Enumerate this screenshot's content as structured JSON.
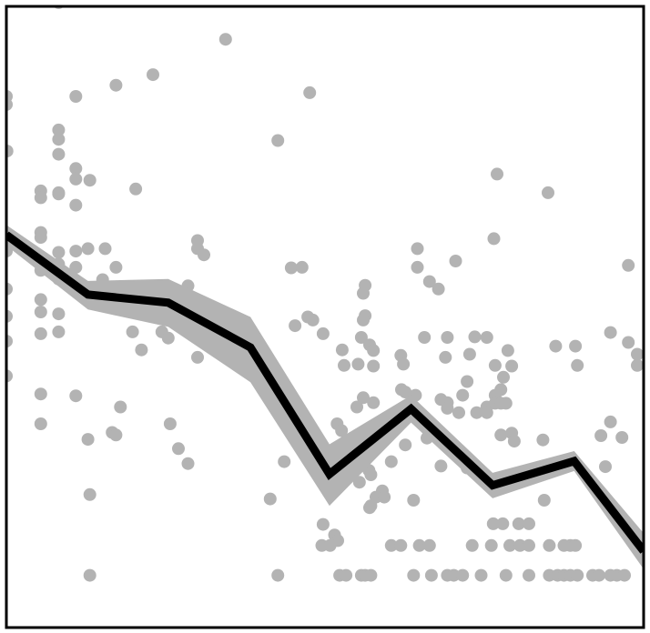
{
  "chart_data": {
    "type": "scatter",
    "title": "",
    "xlabel": "",
    "ylabel": "",
    "xlim": [
      0,
      100
    ],
    "ylim": [
      0,
      100
    ],
    "grid": false,
    "legend": "none",
    "colors": {
      "points": "#b3b3b3",
      "band": "#b3b3b3",
      "line": "#000000",
      "frame": "#000000",
      "background": "#ffffff"
    },
    "points": [
      [
        8.2,
        100.6
      ],
      [
        34.4,
        94.7
      ],
      [
        0.0,
        85.5
      ],
      [
        0.0,
        84.2
      ],
      [
        23.0,
        89.0
      ],
      [
        17.2,
        87.3
      ],
      [
        10.9,
        85.5
      ],
      [
        47.6,
        86.1
      ],
      [
        8.2,
        80.1
      ],
      [
        8.2,
        78.6
      ],
      [
        8.2,
        76.2
      ],
      [
        0.1,
        76.7
      ],
      [
        10.9,
        73.9
      ],
      [
        10.9,
        72.2
      ],
      [
        13.1,
        72.0
      ],
      [
        20.3,
        70.6
      ],
      [
        5.4,
        70.3
      ],
      [
        8.2,
        70.0
      ],
      [
        8.2,
        69.8
      ],
      [
        5.4,
        69.2
      ],
      [
        10.9,
        68.0
      ],
      [
        42.6,
        78.4
      ],
      [
        5.4,
        63.6
      ],
      [
        5.4,
        62.8
      ],
      [
        8.2,
        60.4
      ],
      [
        0.0,
        60.6
      ],
      [
        10.9,
        60.6
      ],
      [
        12.8,
        61.0
      ],
      [
        15.5,
        61.0
      ],
      [
        30.0,
        61.0
      ],
      [
        31.0,
        60.0
      ],
      [
        30.0,
        62.3
      ],
      [
        64.5,
        61.0
      ],
      [
        77.0,
        73.0
      ],
      [
        76.5,
        62.6
      ],
      [
        85.0,
        70.0
      ],
      [
        5.4,
        59.5
      ],
      [
        8.2,
        58.5
      ],
      [
        10.9,
        58.0
      ],
      [
        17.2,
        58.0
      ],
      [
        5.4,
        57.5
      ],
      [
        8.2,
        57.0
      ],
      [
        44.7,
        57.9
      ],
      [
        5.4,
        52.8
      ],
      [
        8.2,
        56.1
      ],
      [
        15.1,
        56.0
      ],
      [
        0.0,
        54.5
      ],
      [
        28.5,
        55.0
      ],
      [
        66.4,
        55.7
      ],
      [
        70.5,
        59.0
      ],
      [
        97.6,
        58.3
      ],
      [
        56.3,
        55.1
      ],
      [
        56.0,
        53.8
      ],
      [
        67.8,
        54.5
      ],
      [
        5.4,
        50.8
      ],
      [
        8.2,
        50.5
      ],
      [
        21.5,
        50.9
      ],
      [
        33.7,
        50.9
      ],
      [
        0.0,
        50.1
      ],
      [
        47.3,
        50.0
      ],
      [
        48.1,
        49.5
      ],
      [
        56.3,
        50.2
      ],
      [
        56.0,
        49.5
      ],
      [
        45.3,
        48.6
      ],
      [
        0.0,
        46.1
      ],
      [
        5.4,
        47.3
      ],
      [
        8.2,
        47.6
      ],
      [
        19.8,
        47.6
      ],
      [
        24.4,
        47.6
      ],
      [
        25.4,
        46.6
      ],
      [
        49.7,
        47.3
      ],
      [
        55.7,
        46.7
      ],
      [
        57.0,
        45.5
      ],
      [
        65.6,
        46.7
      ],
      [
        69.2,
        46.7
      ],
      [
        73.5,
        46.8
      ],
      [
        75.4,
        46.7
      ],
      [
        94.8,
        47.5
      ],
      [
        97.6,
        45.9
      ],
      [
        99.0,
        44.0
      ],
      [
        30.0,
        43.5
      ],
      [
        21.2,
        44.7
      ],
      [
        52.7,
        44.7
      ],
      [
        57.6,
        44.6
      ],
      [
        61.9,
        43.8
      ],
      [
        68.9,
        43.5
      ],
      [
        72.7,
        44.0
      ],
      [
        78.7,
        44.6
      ],
      [
        86.2,
        45.3
      ],
      [
        89.3,
        45.3
      ],
      [
        0.0,
        40.5
      ],
      [
        53.0,
        42.2
      ],
      [
        55.2,
        42.4
      ],
      [
        57.6,
        42.1
      ],
      [
        62.3,
        42.4
      ],
      [
        76.7,
        42.2
      ],
      [
        79.3,
        42.1
      ],
      [
        78.0,
        40.3
      ],
      [
        89.6,
        42.2
      ],
      [
        99.0,
        42.2
      ],
      [
        72.3,
        39.6
      ],
      [
        62.0,
        38.3
      ],
      [
        64.2,
        37.4
      ],
      [
        68.2,
        36.7
      ],
      [
        56.0,
        37.0
      ],
      [
        57.6,
        36.2
      ],
      [
        62.6,
        37.9
      ],
      [
        71.6,
        37.4
      ],
      [
        76.7,
        37.4
      ],
      [
        77.6,
        38.3
      ],
      [
        69.2,
        36.2
      ],
      [
        5.4,
        37.6
      ],
      [
        10.9,
        37.3
      ],
      [
        17.9,
        35.5
      ],
      [
        55.0,
        35.5
      ],
      [
        75.4,
        35.5
      ],
      [
        76.7,
        36.1
      ],
      [
        77.6,
        36.1
      ],
      [
        78.4,
        36.1
      ],
      [
        71.0,
        34.6
      ],
      [
        73.8,
        34.6
      ],
      [
        75.4,
        34.6
      ],
      [
        69.2,
        35.3
      ],
      [
        5.4,
        32.8
      ],
      [
        16.6,
        31.4
      ],
      [
        25.7,
        32.8
      ],
      [
        51.9,
        32.8
      ],
      [
        94.8,
        33.1
      ],
      [
        52.6,
        31.7
      ],
      [
        12.8,
        30.3
      ],
      [
        17.2,
        31.0
      ],
      [
        66.0,
        30.5
      ],
      [
        77.6,
        31.0
      ],
      [
        84.2,
        30.2
      ],
      [
        93.3,
        30.9
      ],
      [
        96.6,
        30.6
      ],
      [
        79.3,
        31.3
      ],
      [
        79.7,
        30.0
      ],
      [
        27.0,
        28.8
      ],
      [
        62.6,
        29.4
      ],
      [
        43.6,
        26.7
      ],
      [
        28.5,
        26.4
      ],
      [
        55.4,
        27.5
      ],
      [
        60.4,
        26.7
      ],
      [
        68.2,
        26.0
      ],
      [
        72.3,
        25.7
      ],
      [
        94.0,
        25.9
      ],
      [
        56.9,
        25.3
      ],
      [
        57.2,
        24.6
      ],
      [
        55.4,
        23.4
      ],
      [
        59.0,
        22.0
      ],
      [
        58.0,
        21.0
      ],
      [
        57.2,
        19.6
      ],
      [
        59.3,
        21.0
      ],
      [
        13.1,
        21.4
      ],
      [
        41.4,
        20.7
      ],
      [
        57.0,
        19.3
      ],
      [
        63.9,
        20.5
      ],
      [
        84.4,
        20.5
      ],
      [
        49.7,
        16.6
      ],
      [
        51.5,
        14.9
      ],
      [
        52.0,
        14.0
      ],
      [
        76.4,
        16.7
      ],
      [
        77.9,
        16.7
      ],
      [
        80.4,
        16.7
      ],
      [
        82.0,
        16.7
      ],
      [
        49.5,
        13.2
      ],
      [
        50.8,
        13.2
      ],
      [
        60.4,
        13.2
      ],
      [
        61.9,
        13.2
      ],
      [
        64.8,
        13.2
      ],
      [
        66.4,
        13.2
      ],
      [
        73.1,
        13.2
      ],
      [
        76.1,
        13.2
      ],
      [
        79.0,
        13.2
      ],
      [
        80.6,
        13.2
      ],
      [
        82.0,
        13.2
      ],
      [
        85.2,
        13.2
      ],
      [
        87.5,
        13.2
      ],
      [
        88.5,
        13.2
      ],
      [
        89.3,
        13.2
      ],
      [
        13.1,
        8.4
      ],
      [
        42.6,
        8.4
      ],
      [
        52.3,
        8.4
      ],
      [
        53.3,
        8.4
      ],
      [
        55.7,
        8.4
      ],
      [
        56.3,
        8.4
      ],
      [
        57.2,
        8.4
      ],
      [
        63.9,
        8.4
      ],
      [
        66.7,
        8.4
      ],
      [
        69.2,
        8.4
      ],
      [
        70.2,
        8.4
      ],
      [
        71.6,
        8.4
      ],
      [
        74.5,
        8.4
      ],
      [
        78.4,
        8.4
      ],
      [
        82.0,
        8.4
      ],
      [
        85.2,
        8.4
      ],
      [
        86.5,
        8.4
      ],
      [
        87.5,
        8.4
      ],
      [
        88.5,
        8.4
      ],
      [
        89.6,
        8.4
      ],
      [
        92.0,
        8.4
      ],
      [
        93.0,
        8.4
      ],
      [
        94.8,
        8.4
      ],
      [
        95.8,
        8.4
      ],
      [
        97.0,
        8.4
      ],
      [
        64.5,
        58.0
      ],
      [
        46.4,
        58.0
      ]
    ],
    "series": [
      {
        "type": "line",
        "x": [
          0,
          12.8,
          25.4,
          38.3,
          50.7,
          63.5,
          76.3,
          89.1,
          100
        ],
        "y": [
          63.2,
          53.6,
          52.3,
          45.1,
          24.7,
          35.2,
          22.9,
          26.8,
          12.3
        ],
        "lower": [
          61.5,
          51.2,
          48.4,
          39.5,
          19.6,
          33.0,
          20.8,
          25.2,
          9.4
        ],
        "upper": [
          64.8,
          55.8,
          56.1,
          50.0,
          29.5,
          37.4,
          24.9,
          28.4,
          15.2
        ]
      }
    ]
  }
}
